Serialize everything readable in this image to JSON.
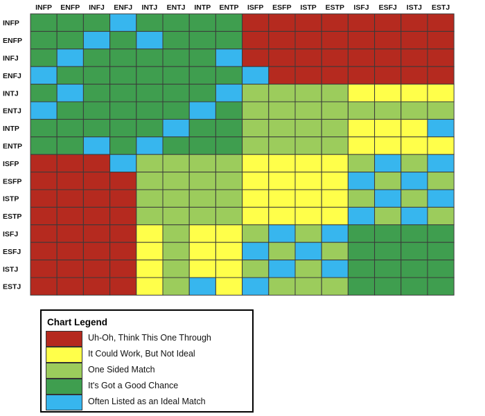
{
  "chart_data": {
    "type": "heatmap",
    "columns": [
      "INFP",
      "ENFP",
      "INFJ",
      "ENFJ",
      "INTJ",
      "ENTJ",
      "INTP",
      "ENTP",
      "ISFP",
      "ESFP",
      "ISTP",
      "ESTP",
      "ISFJ",
      "ESFJ",
      "ISTJ",
      "ESTJ"
    ],
    "rows": [
      "INFP",
      "ENFP",
      "INFJ",
      "ENFJ",
      "INTJ",
      "ENTJ",
      "INTP",
      "ENTP",
      "ISFP",
      "ESFP",
      "ISTP",
      "ESTP",
      "ISFJ",
      "ESFJ",
      "ISTJ",
      "ESTJ"
    ],
    "categories": {
      "R": {
        "label": "Uh-Oh, Think This One Through",
        "color": "#b52a1f"
      },
      "Y": {
        "label": "It Could Work, But Not Ideal",
        "color": "#ffff4a"
      },
      "L": {
        "label": "One Sided Match",
        "color": "#9ccc5c"
      },
      "G": {
        "label": "It's Got a Good Chance",
        "color": "#3f9e4f"
      },
      "B": {
        "label": "Often Listed as an Ideal Match",
        "color": "#37b6ee"
      }
    },
    "grid": [
      "GGGBGGGGRRRRRRRR",
      "GGBGBGGGRRRRRRRR",
      "GBGGGGGBRRRRRRRR",
      "BGGGGGGGBRRRRRRR",
      "GBGGGGGBLLLLYYYY",
      "BGGGGGBGLLLLLLLL",
      "GGGGGBGGLLLLYYYB",
      "GGBGBGGGLLLLYYYY",
      "RRRBLLLLYYYYLBLB",
      "RRRRLLLLYYYYBLBL",
      "RRRRLLLLYYYYLBLB",
      "RRRRLLLLYYYYBLBL",
      "RRRRYLYYLBLBGGGG",
      "RRRRYLYYBLBLGGGG",
      "RRRRYLYYLBLBGGGG",
      "RRRRYLBYBLLLGGGG"
    ]
  },
  "legend": {
    "title": "Chart Legend",
    "items": [
      {
        "key": "R",
        "label": "Uh-Oh, Think This One Through"
      },
      {
        "key": "Y",
        "label": "It Could Work, But Not Ideal"
      },
      {
        "key": "L",
        "label": "One Sided Match"
      },
      {
        "key": "G",
        "label": "It's Got a Good Chance"
      },
      {
        "key": "B",
        "label": "Often Listed as an Ideal Match"
      }
    ]
  }
}
